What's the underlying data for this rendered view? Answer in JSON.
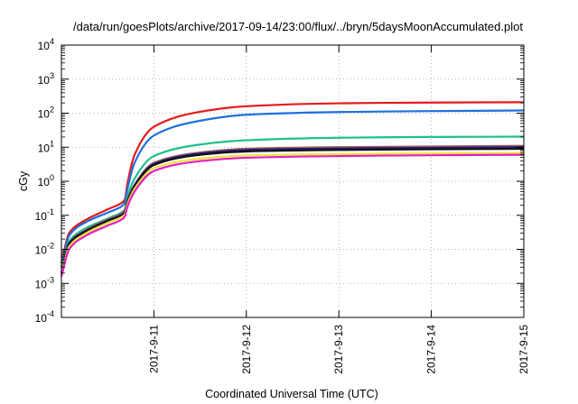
{
  "chart_data": {
    "type": "line",
    "title": "/data/run/goesPlots/archive/2017-09-14/23:00/flux/../bryn/5daysMoonAccumulated.plot",
    "xlabel": "Coordinated Universal Time (UTC)",
    "ylabel": "cGy",
    "xlim": [
      "2017-09-10 00:00",
      "2017-09-15 00:00"
    ],
    "ylim": [
      0.0001,
      10000
    ],
    "yscale": "log",
    "grid": true,
    "x_ticks": [
      "2017-9-11",
      "2017-9-12",
      "2017-9-13",
      "2017-9-14",
      "2017-9-15"
    ],
    "y_ticks": [
      {
        "base": "10",
        "exp": "-4"
      },
      {
        "base": "10",
        "exp": "-3"
      },
      {
        "base": "10",
        "exp": "-2"
      },
      {
        "base": "10",
        "exp": "-1"
      },
      {
        "base": "10",
        "exp": "0"
      },
      {
        "base": "10",
        "exp": "1"
      },
      {
        "base": "10",
        "exp": "2"
      },
      {
        "base": "10",
        "exp": "3"
      },
      {
        "base": "10",
        "exp": "4"
      }
    ],
    "x": [
      "2017-09-10 00:00",
      "2017-09-10 02:00",
      "2017-09-10 06:00",
      "2017-09-10 12:00",
      "2017-09-10 16:00",
      "2017-09-10 16:30",
      "2017-09-10 17:00",
      "2017-09-10 19:00",
      "2017-09-11 00:00",
      "2017-09-11 12:00",
      "2017-09-12 00:00",
      "2017-09-13 00:00",
      "2017-09-14 00:00",
      "2017-09-15 00:00"
    ],
    "series": [
      {
        "color": "#e41a1c",
        "values": [
          0.004,
          0.03,
          0.07,
          0.15,
          0.25,
          0.3,
          0.7,
          6.0,
          40,
          110,
          160,
          195,
          205,
          210
        ]
      },
      {
        "color": "#1f6fe0",
        "values": [
          0.003,
          0.025,
          0.06,
          0.12,
          0.2,
          0.25,
          0.5,
          3.5,
          22,
          60,
          90,
          108,
          115,
          120
        ]
      },
      {
        "color": "#1fbf8f",
        "values": [
          0.0025,
          0.017,
          0.04,
          0.08,
          0.13,
          0.15,
          0.3,
          1.2,
          5.5,
          12,
          16,
          19,
          20,
          20.5
        ]
      },
      {
        "color": "#a05a5a",
        "values": [
          0.002,
          0.015,
          0.035,
          0.075,
          0.12,
          0.14,
          0.25,
          0.8,
          3.5,
          7,
          9,
          10,
          10.5,
          11
        ]
      },
      {
        "color": "#202080",
        "values": [
          0.002,
          0.015,
          0.033,
          0.07,
          0.11,
          0.13,
          0.23,
          0.75,
          3.2,
          6.5,
          8.3,
          9.2,
          9.6,
          10
        ]
      },
      {
        "color": "#111111",
        "values": [
          0.002,
          0.014,
          0.032,
          0.068,
          0.105,
          0.125,
          0.22,
          0.7,
          3.0,
          6.0,
          7.5,
          8.3,
          8.7,
          9
        ]
      },
      {
        "color": "#f0e040",
        "values": [
          0.0018,
          0.012,
          0.028,
          0.06,
          0.095,
          0.11,
          0.19,
          0.6,
          2.4,
          4.6,
          5.7,
          6.3,
          6.6,
          6.8
        ]
      },
      {
        "color": "#e020c0",
        "values": [
          0.0016,
          0.01,
          0.024,
          0.05,
          0.08,
          0.095,
          0.16,
          0.5,
          2.0,
          3.9,
          4.9,
          5.5,
          5.8,
          6.0
        ]
      }
    ]
  }
}
